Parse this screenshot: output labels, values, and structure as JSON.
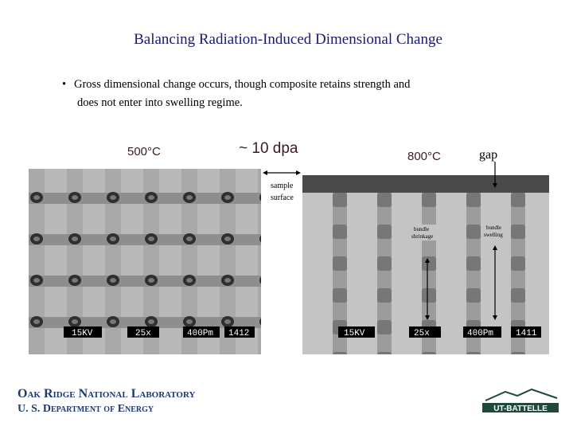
{
  "title": "Balancing Radiation-Induced Dimensional Change",
  "bullet": {
    "line1": "Gross dimensional change occurs, though composite retains strength and",
    "line2": "does not enter into swelling regime."
  },
  "labels": {
    "left_temp": "500°C",
    "dose": "~ 10 dpa",
    "right_temp": "800°C",
    "gap": "gap",
    "sample_surface": [
      "sample",
      "surface"
    ],
    "bundle_shrinkage": [
      "bundle",
      "shrinkage"
    ],
    "bundle_swelling": [
      "bundle",
      "swelling"
    ]
  },
  "left_image": {
    "voltage": "15KV",
    "magnification": "25x",
    "scale": "400Pm",
    "id": "1412"
  },
  "right_image": {
    "voltage": "15KV",
    "magnification": "25x",
    "scale": "400Pm",
    "id": "1411"
  },
  "footer": {
    "lab": "Oak Ridge National Laboratory",
    "dept": "U. S. Department of Energy",
    "logo": "UT-BATTELLE"
  }
}
